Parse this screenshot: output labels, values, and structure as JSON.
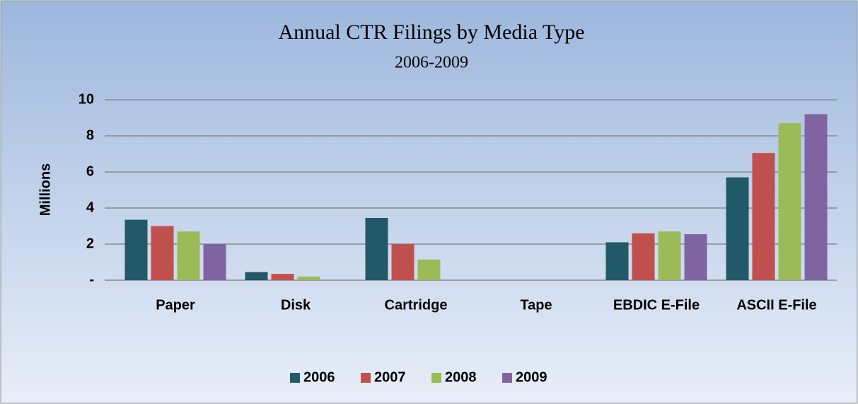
{
  "chart_data": {
    "type": "bar",
    "title": "Annual CTR Filings by Media Type",
    "subtitle": "2006-2009",
    "y_label": "Millions",
    "categories": [
      "Paper",
      "Disk",
      "Cartridge",
      "Tape",
      "EBDIC E-File",
      "ASCII E-File"
    ],
    "series": [
      {
        "name": "2006",
        "color": "#215968",
        "values": [
          3.35,
          0.45,
          3.45,
          0,
          2.1,
          5.7
        ]
      },
      {
        "name": "2007",
        "color": "#c0504d",
        "values": [
          3.0,
          0.35,
          2.0,
          0,
          2.6,
          7.05
        ]
      },
      {
        "name": "2008",
        "color": "#9bbb59",
        "values": [
          2.7,
          0.2,
          1.15,
          0,
          2.7,
          8.7
        ]
      },
      {
        "name": "2009",
        "color": "#8064a2",
        "values": [
          2.0,
          0,
          0,
          0,
          2.55,
          9.2
        ]
      }
    ],
    "ylim": [
      0,
      10
    ],
    "yticks": [
      {
        "value": 0,
        "label": "-"
      },
      2,
      4,
      6,
      8,
      10
    ],
    "grid": true,
    "legend": "bottom"
  }
}
